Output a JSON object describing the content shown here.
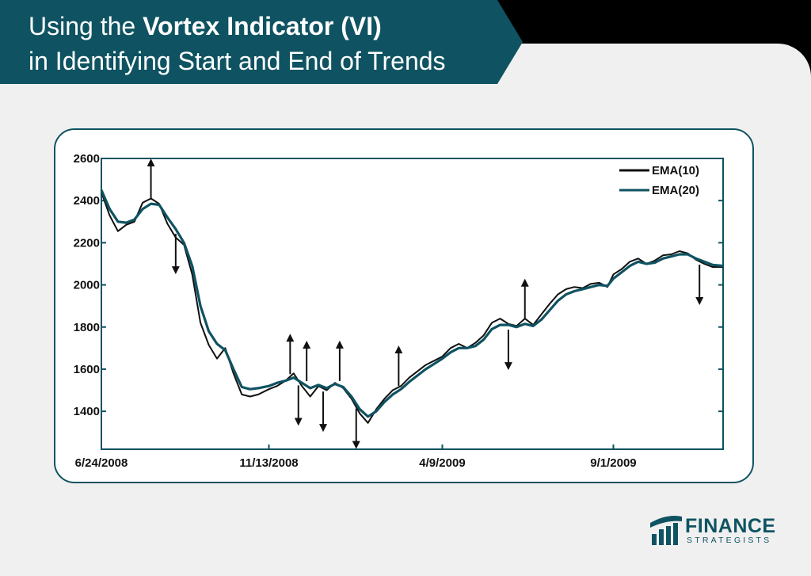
{
  "header": {
    "title_prefix": "Using the ",
    "title_bold": "Vortex Indicator (VI)",
    "title_line2": "in Identifying Start and End of Trends"
  },
  "brand": {
    "name": "FINANCE",
    "subtitle": "STRATEGISTS",
    "primary_color": "#0f5362",
    "background_color": "#f0f0f0"
  },
  "chart_data": {
    "type": "line",
    "title": "",
    "xlabel": "",
    "ylabel": "",
    "x_ticks": [
      "6/24/2008",
      "11/13/2008",
      "4/9/2009",
      "9/1/2009"
    ],
    "y_ticks": [
      1400,
      1600,
      1800,
      2000,
      2200,
      2400,
      2600
    ],
    "ylim": [
      1220,
      2600
    ],
    "xlim": [
      "6/24/2008",
      "12/3/2009"
    ],
    "grid": false,
    "legend": "top-right",
    "series": [
      {
        "name": "EMA(10)",
        "color": "#111111",
        "dates": [
          "6/24/2008",
          "7/1/2008",
          "7/8/2008",
          "7/15/2008",
          "7/22/2008",
          "7/29/2008",
          "8/5/2008",
          "8/12/2008",
          "8/19/2008",
          "8/26/2008",
          "9/2/2008",
          "9/9/2008",
          "9/16/2008",
          "9/23/2008",
          "9/30/2008",
          "10/7/2008",
          "10/14/2008",
          "10/21/2008",
          "10/28/2008",
          "11/4/2008",
          "11/13/2008",
          "11/20/2008",
          "11/27/2008",
          "12/4/2008",
          "12/11/2008",
          "12/18/2008",
          "12/25/2008",
          "1/1/2009",
          "1/8/2009",
          "1/15/2009",
          "1/22/2009",
          "1/29/2009",
          "2/5/2009",
          "2/12/2009",
          "2/19/2009",
          "2/26/2009",
          "3/5/2009",
          "3/12/2009",
          "3/19/2009",
          "3/26/2009",
          "4/2/2009",
          "4/9/2009",
          "4/16/2009",
          "4/23/2009",
          "4/30/2009",
          "5/7/2009",
          "5/14/2009",
          "5/21/2009",
          "5/28/2009",
          "6/4/2009",
          "6/11/2009",
          "6/18/2009",
          "6/25/2009",
          "7/2/2009",
          "7/9/2009",
          "7/16/2009",
          "7/23/2009",
          "7/30/2009",
          "8/6/2009",
          "8/13/2009",
          "8/20/2009",
          "8/27/2009",
          "9/1/2009",
          "9/8/2009",
          "9/15/2009",
          "9/22/2009",
          "9/29/2009",
          "10/6/2009",
          "10/13/2009",
          "10/20/2009",
          "10/27/2009",
          "11/3/2009",
          "11/10/2009",
          "11/17/2009",
          "11/24/2009",
          "12/3/2009"
        ],
        "values": [
          2440,
          2330,
          2255,
          2285,
          2300,
          2390,
          2410,
          2385,
          2290,
          2225,
          2190,
          2050,
          1820,
          1715,
          1650,
          1700,
          1580,
          1480,
          1470,
          1480,
          1505,
          1520,
          1545,
          1580,
          1520,
          1470,
          1520,
          1500,
          1535,
          1510,
          1460,
          1390,
          1345,
          1410,
          1460,
          1500,
          1520,
          1560,
          1590,
          1620,
          1640,
          1660,
          1700,
          1720,
          1700,
          1725,
          1760,
          1820,
          1840,
          1815,
          1805,
          1840,
          1810,
          1860,
          1910,
          1955,
          1980,
          1990,
          1985,
          2005,
          2010,
          1990,
          2050,
          2075,
          2110,
          2125,
          2100,
          2115,
          2140,
          2145,
          2160,
          2150,
          2120,
          2100,
          2085,
          2085
        ]
      },
      {
        "name": "EMA(20)",
        "color": "#0f5362",
        "dates": [
          "6/24/2008",
          "7/1/2008",
          "7/8/2008",
          "7/15/2008",
          "7/22/2008",
          "7/29/2008",
          "8/5/2008",
          "8/12/2008",
          "8/19/2008",
          "8/26/2008",
          "9/2/2008",
          "9/9/2008",
          "9/16/2008",
          "9/23/2008",
          "9/30/2008",
          "10/7/2008",
          "10/14/2008",
          "10/21/2008",
          "10/28/2008",
          "11/4/2008",
          "11/13/2008",
          "11/20/2008",
          "11/27/2008",
          "12/4/2008",
          "12/11/2008",
          "12/18/2008",
          "12/25/2008",
          "1/1/2009",
          "1/8/2009",
          "1/15/2009",
          "1/22/2009",
          "1/29/2009",
          "2/5/2009",
          "2/12/2009",
          "2/19/2009",
          "2/26/2009",
          "3/5/2009",
          "3/12/2009",
          "3/19/2009",
          "3/26/2009",
          "4/2/2009",
          "4/9/2009",
          "4/16/2009",
          "4/23/2009",
          "4/30/2009",
          "5/7/2009",
          "5/14/2009",
          "5/21/2009",
          "5/28/2009",
          "6/4/2009",
          "6/11/2009",
          "6/18/2009",
          "6/25/2009",
          "7/2/2009",
          "7/9/2009",
          "7/16/2009",
          "7/23/2009",
          "7/30/2009",
          "8/6/2009",
          "8/13/2009",
          "8/20/2009",
          "8/27/2009",
          "9/1/2009",
          "9/8/2009",
          "9/15/2009",
          "9/22/2009",
          "9/29/2009",
          "10/6/2009",
          "10/13/2009",
          "10/20/2009",
          "10/27/2009",
          "11/3/2009",
          "11/10/2009",
          "11/17/2009",
          "11/24/2009",
          "12/3/2009"
        ],
        "values": [
          2450,
          2360,
          2300,
          2295,
          2310,
          2360,
          2385,
          2380,
          2320,
          2265,
          2200,
          2090,
          1900,
          1780,
          1720,
          1690,
          1600,
          1515,
          1505,
          1510,
          1520,
          1535,
          1545,
          1560,
          1535,
          1510,
          1525,
          1510,
          1530,
          1515,
          1470,
          1410,
          1375,
          1400,
          1445,
          1480,
          1505,
          1540,
          1570,
          1600,
          1625,
          1650,
          1680,
          1700,
          1700,
          1710,
          1740,
          1790,
          1810,
          1810,
          1800,
          1815,
          1805,
          1835,
          1880,
          1925,
          1955,
          1970,
          1980,
          1990,
          2000,
          1995,
          2030,
          2060,
          2090,
          2110,
          2100,
          2105,
          2125,
          2135,
          2145,
          2145,
          2125,
          2110,
          2095,
          2090
        ]
      }
    ],
    "signals": [
      {
        "date": "8/5/2008",
        "direction": "up"
      },
      {
        "date": "8/26/2008",
        "direction": "down"
      },
      {
        "date": "12/1/2008",
        "direction": "up"
      },
      {
        "date": "12/8/2008",
        "direction": "down"
      },
      {
        "date": "12/15/2008",
        "direction": "up"
      },
      {
        "date": "12/29/2008",
        "direction": "down"
      },
      {
        "date": "1/12/2009",
        "direction": "up"
      },
      {
        "date": "1/26/2009",
        "direction": "down"
      },
      {
        "date": "3/3/2009",
        "direction": "up"
      },
      {
        "date": "6/4/2009",
        "direction": "down"
      },
      {
        "date": "6/18/2009",
        "direction": "up"
      },
      {
        "date": "11/13/2009",
        "direction": "down"
      }
    ]
  }
}
